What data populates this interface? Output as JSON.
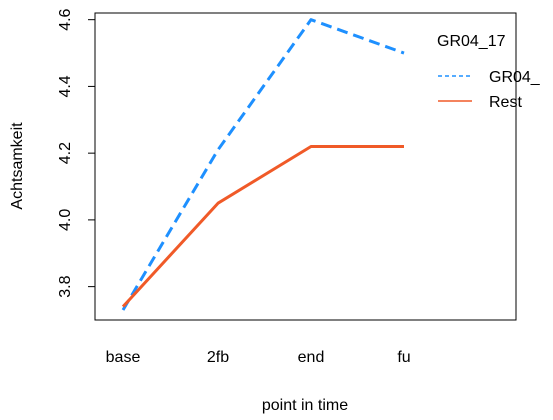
{
  "chart_data": {
    "type": "line",
    "categories": [
      "base",
      "2fb",
      "end",
      "fu"
    ],
    "xlabel": "point in time",
    "ylabel": "Achtsamkeit",
    "ylim": [
      3.7,
      4.62
    ],
    "yticks": [
      "3.8",
      "4.0",
      "4.2",
      "4.4",
      "4.6"
    ],
    "grid": false,
    "legend": {
      "title": "GR04_17",
      "placement": "top-right",
      "entries": [
        "GR04_",
        "Rest"
      ]
    },
    "series": [
      {
        "name": "GR04_",
        "values": [
          3.73,
          4.21,
          4.6,
          4.5
        ],
        "color": "#1e90ff",
        "dash": "dashed"
      },
      {
        "name": "Rest",
        "values": [
          3.74,
          4.05,
          4.22,
          4.22
        ],
        "color": "#f05a28",
        "dash": "solid"
      }
    ]
  }
}
